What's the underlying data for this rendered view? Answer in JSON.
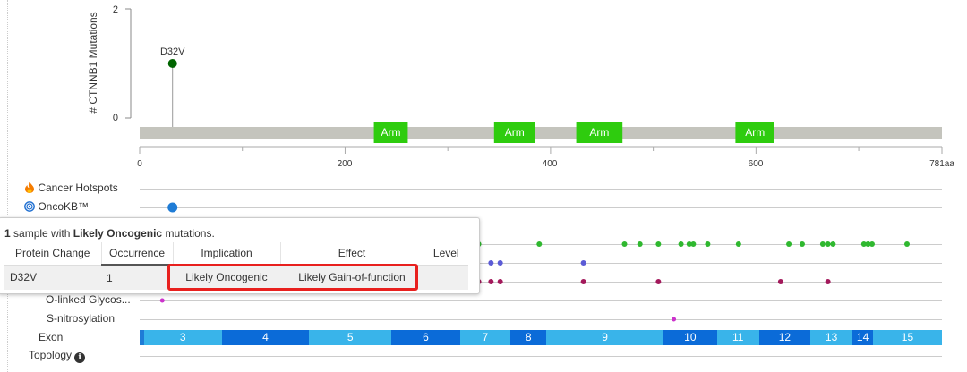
{
  "lollipop": {
    "ylabel": "# CTNNB1 Mutations",
    "y_ticks": [
      "2",
      "0"
    ],
    "x_ticks": [
      "0",
      "200",
      "400",
      "600",
      "781aa"
    ],
    "protein_length": 781,
    "mutation": {
      "label": "D32V",
      "position": 32,
      "count": 1,
      "color": "#006400"
    },
    "domains": [
      {
        "name": "Arm",
        "start": 228,
        "end": 261
      },
      {
        "name": "Arm",
        "start": 345,
        "end": 385
      },
      {
        "name": "Arm",
        "start": 425,
        "end": 470
      },
      {
        "name": "Arm",
        "start": 580,
        "end": 618
      }
    ],
    "domain_color": "#2ecc0e",
    "backbone_color": "#c4c4bd"
  },
  "tracks": {
    "cancer_hotspots": "Cancer Hotspots",
    "oncokb": "OncoKB™",
    "o_linked": "O-linked Glycos...",
    "s_nitrosylation": "S-nitrosylation",
    "exon": "Exon",
    "topology": "Topology"
  },
  "ptm": {
    "oncokb_dot": {
      "position": 32,
      "color": "#1f7cd6"
    },
    "green_dots": {
      "color": "#2fb82f",
      "positions": [
        330,
        389,
        472,
        487,
        505,
        527,
        535,
        539,
        553,
        583,
        632,
        645,
        665,
        670,
        675,
        705,
        709,
        713,
        747
      ]
    },
    "blue_dots": {
      "color": "#5b5bd6",
      "positions": [
        342,
        351,
        432
      ]
    },
    "red_dots": {
      "color": "#a3195b",
      "positions": [
        330,
        342,
        351,
        432,
        505,
        624,
        670
      ]
    },
    "olinked_dots": {
      "color": "#cc33cc",
      "positions": [
        22
      ]
    },
    "snitro_dots": {
      "color": "#cc33cc",
      "positions": [
        520
      ]
    }
  },
  "exons": [
    {
      "label": "",
      "start": 0,
      "end": 4,
      "color": "#1f7cd6"
    },
    {
      "label": "3",
      "start": 4,
      "end": 80,
      "color": "#39b4ea"
    },
    {
      "label": "4",
      "start": 80,
      "end": 165,
      "color": "#0b6bd8"
    },
    {
      "label": "5",
      "start": 165,
      "end": 245,
      "color": "#39b4ea"
    },
    {
      "label": "6",
      "start": 245,
      "end": 312,
      "color": "#0b6bd8"
    },
    {
      "label": "7",
      "start": 312,
      "end": 361,
      "color": "#39b4ea"
    },
    {
      "label": "8",
      "start": 361,
      "end": 396,
      "color": "#0b6bd8"
    },
    {
      "label": "9",
      "start": 396,
      "end": 510,
      "color": "#39b4ea"
    },
    {
      "label": "10",
      "start": 510,
      "end": 562,
      "color": "#0b6bd8"
    },
    {
      "label": "11",
      "start": 562,
      "end": 603,
      "color": "#39b4ea"
    },
    {
      "label": "12",
      "start": 603,
      "end": 653,
      "color": "#0b6bd8"
    },
    {
      "label": "13",
      "start": 653,
      "end": 694,
      "color": "#39b4ea"
    },
    {
      "label": "14",
      "start": 694,
      "end": 714,
      "color": "#0b6bd8"
    },
    {
      "label": "15",
      "start": 714,
      "end": 781,
      "color": "#39b4ea"
    }
  ],
  "tooltip": {
    "count": "1",
    "text_mid": "sample with",
    "bold": "Likely Oncogenic",
    "text_end": "mutations.",
    "headers": [
      "Protein Change",
      "Occurrence",
      "Implication",
      "Effect",
      "Level"
    ],
    "row": {
      "protein_change": "D32V",
      "occurrence": "1",
      "implication": "Likely Oncogenic",
      "effect": "Likely Gain-of-function",
      "level": ""
    }
  }
}
